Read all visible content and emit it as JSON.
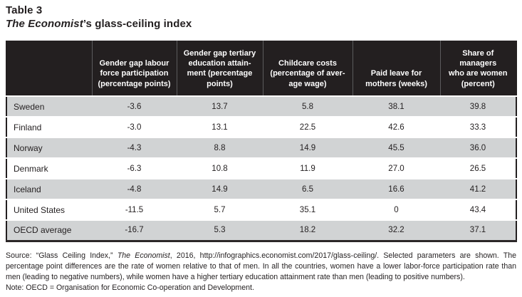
{
  "title": {
    "line1": "Table 3",
    "line2_italic": "The Economist",
    "line2_rest": "’s glass-ceiling index"
  },
  "colors": {
    "header_bg": "#231f20",
    "row_alt_gray": "#d1d3d4",
    "text": "#231f20",
    "header_text": "#ffffff"
  },
  "table": {
    "columns": [
      {
        "lines": []
      },
      {
        "lines": [
          "Gender gap labour",
          "force participation",
          "(percentage points)"
        ]
      },
      {
        "lines": [
          "Gender gap tertiary",
          "education attain-",
          "ment (percentage",
          "points)"
        ]
      },
      {
        "lines": [
          "Childcare costs",
          "(percentage of aver-",
          "age wage)"
        ]
      },
      {
        "lines": [
          "Paid leave for",
          "mothers (weeks)"
        ]
      },
      {
        "lines": [
          "Share of managers",
          "who are women",
          "(percent)"
        ]
      }
    ],
    "rows": [
      {
        "label": "Sweden",
        "values": [
          "-3.6",
          "13.7",
          "5.8",
          "38.1",
          "39.8"
        ]
      },
      {
        "label": "Finland",
        "values": [
          "-3.0",
          "13.1",
          "22.5",
          "42.6",
          "33.3"
        ]
      },
      {
        "label": "Norway",
        "values": [
          "-4.3",
          "8.8",
          "14.9",
          "45.5",
          "36.0"
        ]
      },
      {
        "label": "Denmark",
        "values": [
          "-6.3",
          "10.8",
          "11.9",
          "27.0",
          "26.5"
        ]
      },
      {
        "label": "Iceland",
        "values": [
          "-4.8",
          "14.9",
          "6.5",
          "16.6",
          "41.2"
        ]
      },
      {
        "label": "United States",
        "values": [
          "-11.5",
          "5.7",
          "35.1",
          "0",
          "43.4"
        ]
      },
      {
        "label": "OECD average",
        "values": [
          "-16.7",
          "5.3",
          "18.2",
          "32.2",
          "37.1"
        ]
      }
    ]
  },
  "footnote": {
    "source_pre": "Source: “Glass Ceiling Index,” ",
    "source_italic": "The Economist",
    "source_post": ", 2016, http://infographics.economist.com/2017/glass-ceiling/. Selected parameters are shown. The percentage point differences are the rate of women relative to that of men. In all the countries, women have a lower labor-force participation rate than men (leading to negative numbers), while women have a higher tertiary education attainment rate than men (leading to positive numbers).",
    "note": "Note: OECD = Organisation for Economic  Co-operation and Development."
  }
}
